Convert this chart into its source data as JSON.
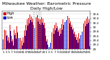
{
  "title": "Milwaukee Weather: Barometric Pressure",
  "subtitle": "Daily High/Low",
  "background_color": "#ffffff",
  "bar_color_high": "#dd0000",
  "bar_color_low": "#0000cc",
  "grid_color": "#cccccc",
  "ylim": [
    29.0,
    30.75
  ],
  "yticks": [
    29.0,
    29.2,
    29.4,
    29.6,
    29.8,
    30.0,
    30.2,
    30.4,
    30.6
  ],
  "ytick_labels": [
    "29",
    "29.2",
    "29.4",
    "29.6",
    "29.8",
    "30",
    "30.2",
    "30.4",
    "30.6"
  ],
  "highs": [
    29.72,
    29.88,
    29.85,
    29.65,
    29.55,
    30.1,
    29.62,
    29.45,
    29.9,
    29.72,
    30.05,
    29.78,
    29.5,
    29.4,
    29.55,
    29.85,
    30.1,
    30.35,
    30.42,
    30.58,
    30.5,
    30.38,
    30.2,
    30.45,
    30.55,
    30.4,
    30.35,
    30.45,
    30.38,
    30.2,
    29.6,
    29.45,
    29.35,
    29.55,
    29.75,
    29.95,
    30.1,
    30.2,
    30.05,
    29.88,
    29.95,
    30.15,
    30.35,
    30.5,
    30.58,
    30.52,
    30.42,
    30.28,
    30.12,
    29.95,
    29.8,
    29.68,
    29.55,
    29.72,
    29.9,
    30.05,
    30.18,
    30.3,
    30.4,
    30.48,
    30.35
  ],
  "lows": [
    29.45,
    29.6,
    29.62,
    29.38,
    29.28,
    29.82,
    29.35,
    29.18,
    29.65,
    29.48,
    29.78,
    29.52,
    29.25,
    29.18,
    29.3,
    29.62,
    29.85,
    30.08,
    30.18,
    30.32,
    30.25,
    30.12,
    29.95,
    30.2,
    30.28,
    30.15,
    30.1,
    30.2,
    30.12,
    29.95,
    29.35,
    29.2,
    29.1,
    29.28,
    29.5,
    29.7,
    29.85,
    29.95,
    29.8,
    29.62,
    29.7,
    29.9,
    30.1,
    30.25,
    30.32,
    30.26,
    30.16,
    30.02,
    29.88,
    29.7,
    29.55,
    29.42,
    29.3,
    29.48,
    29.65,
    29.8,
    29.92,
    30.05,
    30.15,
    30.22,
    29.15
  ],
  "x_labels": [
    "1",
    "2",
    "3",
    "4",
    "5",
    "6",
    "7",
    "8",
    "9",
    "10",
    "11",
    "12",
    "13",
    "14",
    "15",
    "16",
    "17",
    "18",
    "19",
    "20",
    "21",
    "22",
    "23",
    "24",
    "25",
    "26",
    "27",
    "28",
    "29",
    "30",
    "1",
    "2",
    "3",
    "4",
    "5",
    "6",
    "7",
    "8",
    "9",
    "10",
    "11",
    "12",
    "13",
    "14",
    "15",
    "16",
    "17",
    "18",
    "19",
    "20",
    "21",
    "22",
    "23",
    "24",
    "25",
    "26",
    "27",
    "28",
    "29",
    "30",
    "31"
  ],
  "dashed_indices": [
    21,
    22,
    23,
    24,
    25,
    26
  ],
  "title_fontsize": 4.5,
  "tick_fontsize": 3.2,
  "legend_fontsize": 3.5,
  "bar_width": 0.42
}
